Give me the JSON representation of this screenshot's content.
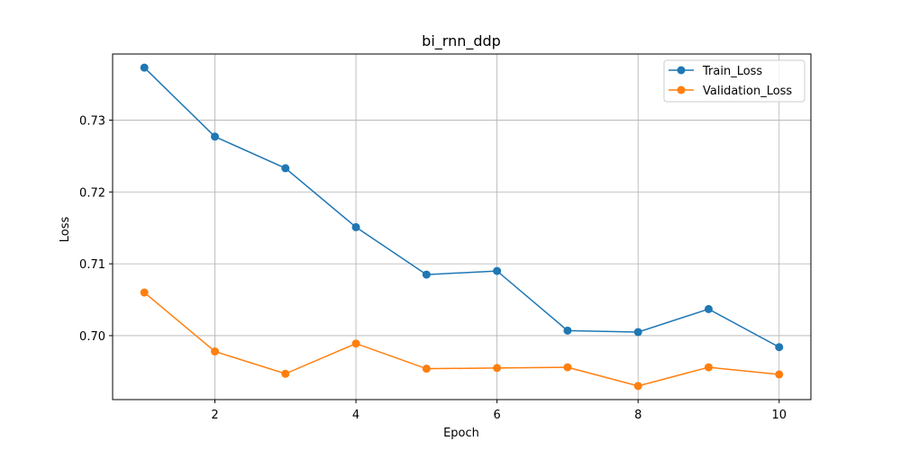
{
  "chart_data": {
    "type": "line",
    "title": "bi_rnn_ddp",
    "xlabel": "Epoch",
    "ylabel": "Loss",
    "x": [
      1,
      2,
      3,
      4,
      5,
      6,
      7,
      8,
      9,
      10
    ],
    "xlim": [
      0.55,
      10.45
    ],
    "ylim": [
      0.6911,
      0.7392
    ],
    "xticks": [
      2,
      4,
      6,
      8,
      10
    ],
    "xtick_labels": [
      "2",
      "4",
      "6",
      "8",
      "10"
    ],
    "yticks": [
      0.7,
      0.71,
      0.72,
      0.73
    ],
    "ytick_labels": [
      "0.70",
      "0.71",
      "0.72",
      "0.73"
    ],
    "grid": true,
    "legend_position": "top-right",
    "series": [
      {
        "name": "Train_Loss",
        "color": "#1f77b4",
        "marker": "circle",
        "values": [
          0.7373,
          0.7277,
          0.7233,
          0.7151,
          0.7085,
          0.709,
          0.7007,
          0.7005,
          0.7037,
          0.6984
        ]
      },
      {
        "name": "Validation_Loss",
        "color": "#ff7f0e",
        "marker": "circle",
        "values": [
          0.706,
          0.6978,
          0.6947,
          0.6989,
          0.6954,
          0.6955,
          0.6956,
          0.693,
          0.6956,
          0.6946
        ]
      }
    ]
  }
}
